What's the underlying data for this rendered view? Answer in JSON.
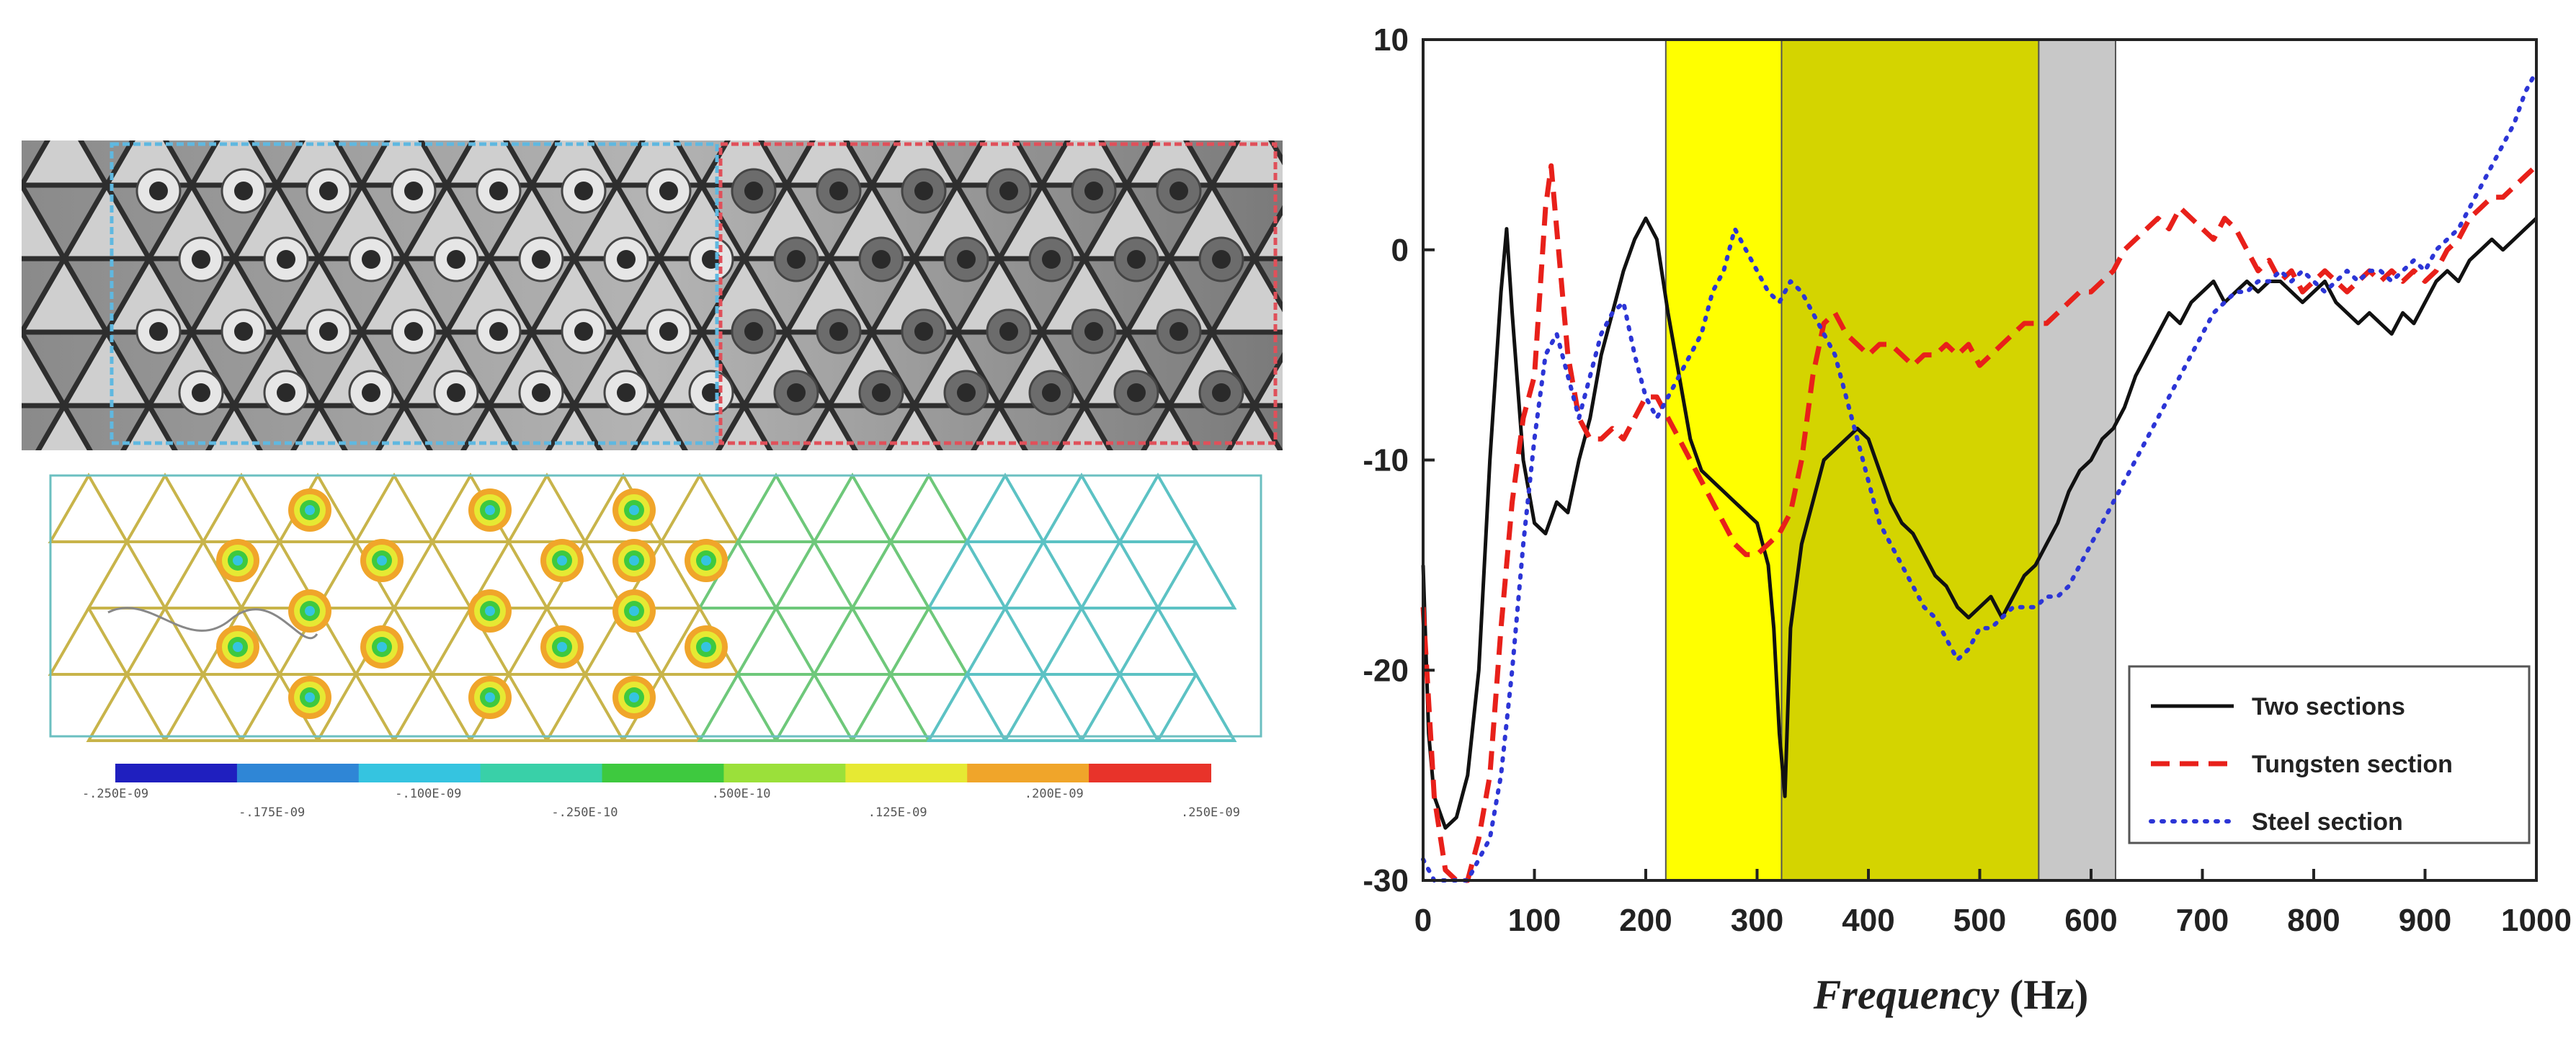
{
  "left_panel": {
    "colorbar": {
      "colors": [
        "#1f1fbf",
        "#2f86d6",
        "#35c4e0",
        "#39d0a8",
        "#3ec93f",
        "#9be03a",
        "#e6e933",
        "#f0a52a",
        "#e8332a"
      ],
      "labels": [
        "-.250E-09",
        "-.175E-09",
        "-.100E-09",
        "-.250E-10",
        ".500E-10",
        ".125E-09",
        ".200E-09",
        ".250E-09"
      ]
    }
  },
  "chart_data": {
    "type": "line",
    "xlabel": "Frequency (Hz)",
    "xlabel_italic": "Frequency",
    "xlabel_unit": "(Hz)",
    "ylabel": "",
    "xlim": [
      0,
      1000
    ],
    "ylim": [
      -30,
      10
    ],
    "xticks": [
      "0",
      "100",
      "200",
      "300",
      "400",
      "500",
      "600",
      "700",
      "800",
      "900",
      "1000"
    ],
    "yticks": [
      "10",
      "0",
      "-10",
      "-20",
      "-30"
    ],
    "grid": false,
    "legend_position": "bottom-right",
    "bands": [
      {
        "x0": 218,
        "x1": 322,
        "color": "#ffff00"
      },
      {
        "x0": 322,
        "x1": 553,
        "color": "#d4d400"
      },
      {
        "x0": 553,
        "x1": 622,
        "color": "#c8c8c8"
      }
    ],
    "series": [
      {
        "name": "Two sections",
        "color": "#111111",
        "style": "solid",
        "x": [
          0,
          5,
          10,
          20,
          30,
          40,
          50,
          60,
          70,
          75,
          80,
          90,
          100,
          110,
          120,
          130,
          140,
          150,
          160,
          170,
          180,
          190,
          200,
          210,
          220,
          230,
          240,
          250,
          260,
          270,
          280,
          290,
          300,
          310,
          315,
          320,
          325,
          330,
          340,
          350,
          360,
          370,
          380,
          390,
          400,
          410,
          420,
          430,
          440,
          450,
          460,
          470,
          480,
          490,
          500,
          510,
          520,
          530,
          540,
          550,
          560,
          570,
          580,
          590,
          600,
          610,
          620,
          630,
          640,
          650,
          660,
          670,
          680,
          690,
          700,
          710,
          720,
          730,
          740,
          750,
          760,
          770,
          780,
          790,
          800,
          810,
          820,
          830,
          840,
          850,
          860,
          870,
          880,
          890,
          900,
          910,
          920,
          930,
          940,
          950,
          960,
          970,
          980,
          990,
          1000
        ],
        "y": [
          -15,
          -23,
          -26,
          -27.5,
          -27,
          -25,
          -20,
          -10,
          -2,
          1,
          -3,
          -10,
          -13,
          -13.5,
          -12,
          -12.5,
          -10,
          -8,
          -5,
          -3,
          -1,
          0.5,
          1.5,
          0.5,
          -3,
          -6,
          -9,
          -10.5,
          -11,
          -11.5,
          -12,
          -12.5,
          -13,
          -15,
          -18,
          -23,
          -26,
          -18,
          -14,
          -12,
          -10,
          -9.5,
          -9,
          -8.5,
          -9,
          -10.5,
          -12,
          -13,
          -13.5,
          -14.5,
          -15.5,
          -16,
          -17,
          -17.5,
          -17,
          -16.5,
          -17.5,
          -16.5,
          -15.5,
          -15,
          -14,
          -13,
          -11.5,
          -10.5,
          -10,
          -9,
          -8.5,
          -7.5,
          -6,
          -5,
          -4,
          -3,
          -3.5,
          -2.5,
          -2,
          -1.5,
          -2.5,
          -2,
          -1.5,
          -2,
          -1.5,
          -1.5,
          -2,
          -2.5,
          -2,
          -1.5,
          -2.5,
          -3,
          -3.5,
          -3,
          -3.5,
          -4,
          -3,
          -3.5,
          -2.5,
          -1.5,
          -1,
          -1.5,
          -0.5,
          0,
          0.5,
          0,
          0.5,
          1,
          1.5
        ]
      },
      {
        "name": "Tungsten section",
        "color": "#e8201a",
        "style": "dashed",
        "x": [
          0,
          10,
          20,
          30,
          40,
          50,
          60,
          70,
          80,
          90,
          100,
          105,
          110,
          115,
          120,
          130,
          140,
          150,
          160,
          170,
          180,
          190,
          200,
          210,
          220,
          230,
          240,
          250,
          260,
          270,
          280,
          290,
          300,
          310,
          320,
          330,
          340,
          350,
          360,
          370,
          380,
          390,
          400,
          410,
          420,
          430,
          440,
          450,
          460,
          470,
          480,
          490,
          500,
          510,
          520,
          530,
          540,
          550,
          560,
          570,
          580,
          590,
          600,
          610,
          620,
          630,
          640,
          650,
          660,
          670,
          680,
          690,
          700,
          710,
          720,
          730,
          740,
          750,
          760,
          770,
          780,
          790,
          800,
          810,
          820,
          830,
          840,
          850,
          860,
          870,
          880,
          890,
          900,
          910,
          920,
          930,
          940,
          950,
          960,
          970,
          980,
          990,
          1000
        ],
        "y": [
          -17,
          -26,
          -29.5,
          -30,
          -30,
          -28,
          -25,
          -18,
          -12,
          -8,
          -6,
          -2,
          2,
          4,
          1,
          -5,
          -8,
          -9,
          -9,
          -8.5,
          -9,
          -8,
          -7,
          -7,
          -8,
          -9,
          -10,
          -11,
          -12,
          -13,
          -14,
          -14.5,
          -14.5,
          -14,
          -13.5,
          -12.5,
          -10,
          -6,
          -3.5,
          -3,
          -4,
          -4.5,
          -5,
          -4.5,
          -4.5,
          -5,
          -5.5,
          -5,
          -5,
          -4.5,
          -5,
          -4.5,
          -5.5,
          -5,
          -4.5,
          -4,
          -3.5,
          -3.5,
          -3.5,
          -3,
          -2.5,
          -2,
          -2,
          -1.5,
          -1,
          0,
          0.5,
          1,
          1.5,
          1,
          2,
          1.5,
          1,
          0.5,
          1.5,
          1,
          0,
          -1,
          -0.5,
          -1.5,
          -1,
          -2,
          -1.5,
          -1,
          -1.5,
          -2,
          -1.5,
          -1,
          -1.5,
          -1,
          -1.5,
          -1,
          -1.5,
          -1,
          0,
          0.5,
          1.5,
          2,
          2.5,
          2.5,
          3,
          3.5,
          4
        ]
      },
      {
        "name": "Steel section",
        "color": "#2c35d6",
        "style": "dotted",
        "x": [
          0,
          10,
          20,
          30,
          40,
          50,
          60,
          70,
          80,
          90,
          100,
          110,
          120,
          130,
          140,
          150,
          160,
          170,
          180,
          190,
          200,
          210,
          220,
          230,
          240,
          250,
          260,
          270,
          280,
          290,
          300,
          310,
          320,
          330,
          340,
          350,
          360,
          370,
          380,
          390,
          400,
          410,
          420,
          430,
          440,
          450,
          460,
          470,
          480,
          490,
          500,
          510,
          520,
          530,
          540,
          550,
          560,
          570,
          580,
          590,
          600,
          610,
          620,
          630,
          640,
          650,
          660,
          670,
          680,
          690,
          700,
          710,
          720,
          730,
          740,
          750,
          760,
          770,
          780,
          790,
          800,
          810,
          820,
          830,
          840,
          850,
          860,
          870,
          880,
          890,
          900,
          910,
          920,
          930,
          940,
          950,
          960,
          970,
          980,
          990,
          1000
        ],
        "y": [
          -29,
          -30,
          -30,
          -30,
          -30,
          -29,
          -28,
          -25,
          -20,
          -14,
          -9,
          -5,
          -4,
          -6,
          -8,
          -6,
          -4,
          -3,
          -2.5,
          -5,
          -7,
          -8,
          -7,
          -6,
          -5,
          -4,
          -2,
          -1,
          1,
          0,
          -1,
          -2,
          -2.5,
          -1.5,
          -2,
          -3,
          -4,
          -5,
          -7,
          -9,
          -11,
          -13,
          -14,
          -15,
          -16,
          -17,
          -17.5,
          -18.5,
          -19.5,
          -19,
          -18,
          -18,
          -17.5,
          -17,
          -17,
          -17,
          -16.5,
          -16.5,
          -16,
          -15,
          -14,
          -13,
          -12,
          -11,
          -10,
          -9,
          -8,
          -7,
          -6,
          -5,
          -4,
          -3,
          -2.5,
          -2,
          -2,
          -1.5,
          -1.5,
          -1,
          -1.5,
          -1,
          -1.5,
          -2,
          -1.5,
          -1,
          -1.5,
          -1,
          -1,
          -1.5,
          -1,
          -0.5,
          -1,
          0,
          0.5,
          1,
          2,
          3,
          4,
          5,
          6,
          7.5,
          8.5
        ]
      }
    ]
  }
}
